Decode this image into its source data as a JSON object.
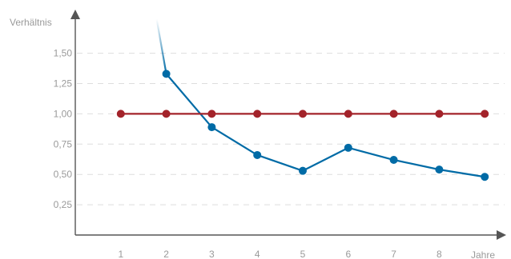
{
  "chart_data": {
    "type": "line",
    "ylabel": "Verhältnis",
    "xlabel": "Jahre",
    "xlim": [
      0,
      8.85
    ],
    "ylim": [
      0,
      1.75
    ],
    "x_ticks": [
      "1",
      "2",
      "3",
      "4",
      "5",
      "6",
      "7",
      "8"
    ],
    "y_ticks": [
      "0,25",
      "0,50",
      "0,75",
      "1,00",
      "1,25",
      "1,50"
    ],
    "y_tick_values": [
      0.25,
      0.5,
      0.75,
      1.0,
      1.25,
      1.5
    ],
    "grid": "horizontal dashed",
    "series": [
      {
        "color": "#006ba6",
        "x": [
          2,
          3,
          4,
          5,
          6,
          7,
          8,
          9
        ],
        "y": [
          1.33,
          0.89,
          0.66,
          0.53,
          0.72,
          0.62,
          0.54,
          0.48
        ],
        "lead_in": {
          "x": 1.72,
          "y": 1.93,
          "fade": true
        }
      },
      {
        "color": "#a3232a",
        "x": [
          1,
          2,
          3,
          4,
          5,
          6,
          7,
          8,
          9
        ],
        "y": [
          1.0,
          1.0,
          1.0,
          1.0,
          1.0,
          1.0,
          1.0,
          1.0,
          1.0
        ]
      }
    ]
  }
}
